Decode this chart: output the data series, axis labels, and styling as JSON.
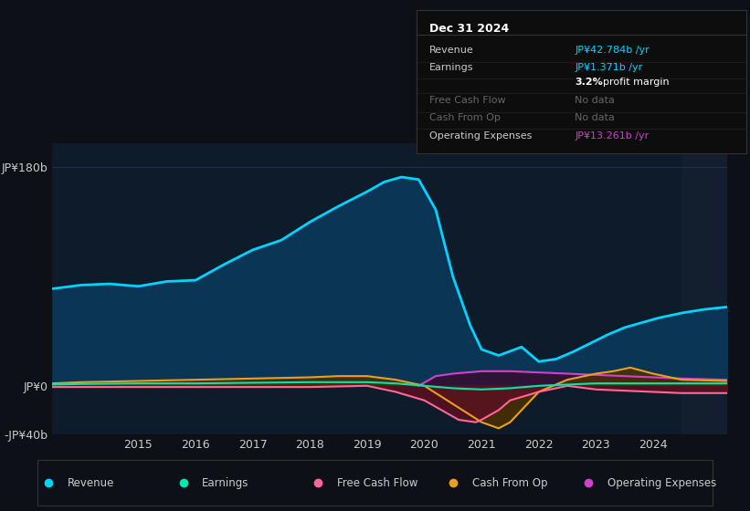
{
  "bg_color": "#0d1117",
  "plot_bg_color": "#0d1b2a",
  "grid_color": "#1e3050",
  "text_color": "#cccccc",
  "title_color": "#ffffff",
  "info_box": {
    "title": "Dec 31 2024",
    "rows": [
      {
        "label": "Revenue",
        "value": "JP¥42.784b /yr",
        "value_color": "#00d4ff",
        "dimmed": false
      },
      {
        "label": "Earnings",
        "value": "JP¥1.371b /yr",
        "value_color": "#00d4ff",
        "dimmed": false
      },
      {
        "label": "",
        "value": "3.2% profit margin",
        "value_color": "#ffffff",
        "dimmed": false
      },
      {
        "label": "Free Cash Flow",
        "value": "No data",
        "value_color": "#666666",
        "dimmed": true
      },
      {
        "label": "Cash From Op",
        "value": "No data",
        "value_color": "#666666",
        "dimmed": true
      },
      {
        "label": "Operating Expenses",
        "value": "JP¥13.261b /yr",
        "value_color": "#cc44cc",
        "dimmed": false
      }
    ]
  },
  "ylim": [
    -40,
    200
  ],
  "yticks": [
    -40,
    0,
    180
  ],
  "ytick_labels": [
    "-JP¥40b",
    "JP¥0",
    "JP¥180b"
  ],
  "xmin": 2013.5,
  "xmax": 2025.3,
  "xticks": [
    2015,
    2016,
    2017,
    2018,
    2019,
    2020,
    2021,
    2022,
    2023,
    2024
  ],
  "shaded_right_x": 2024.5,
  "revenue": {
    "x": [
      2013.5,
      2014.0,
      2014.5,
      2015.0,
      2015.5,
      2016.0,
      2016.5,
      2017.0,
      2017.5,
      2018.0,
      2018.5,
      2019.0,
      2019.3,
      2019.6,
      2019.9,
      2020.2,
      2020.5,
      2020.8,
      2021.0,
      2021.3,
      2021.7,
      2022.0,
      2022.3,
      2022.6,
      2022.9,
      2023.2,
      2023.5,
      2023.8,
      2024.1,
      2024.5,
      2024.9,
      2025.3
    ],
    "y": [
      80,
      83,
      84,
      82,
      86,
      87,
      100,
      112,
      120,
      135,
      148,
      160,
      168,
      172,
      170,
      145,
      90,
      50,
      30,
      25,
      32,
      20,
      22,
      28,
      35,
      42,
      48,
      52,
      56,
      60,
      63,
      65
    ],
    "color": "#00d4ff",
    "fill_color": "#0a3a5c",
    "lw": 2.0
  },
  "earnings": {
    "x": [
      2013.5,
      2014.0,
      2015.0,
      2016.0,
      2017.0,
      2018.0,
      2019.0,
      2019.5,
      2020.0,
      2020.5,
      2021.0,
      2021.5,
      2022.0,
      2022.5,
      2023.0,
      2023.5,
      2024.0,
      2024.5,
      2025.3
    ],
    "y": [
      1,
      1.5,
      2,
      2,
      2.5,
      3,
      3,
      2,
      0,
      -2,
      -3,
      -2,
      0,
      1,
      2,
      2,
      2,
      2,
      2
    ],
    "color": "#00e8b0",
    "lw": 1.5
  },
  "free_cash_flow": {
    "x": [
      2013.5,
      2014.0,
      2015.0,
      2016.0,
      2017.0,
      2018.0,
      2019.0,
      2019.5,
      2020.0,
      2020.3,
      2020.6,
      2020.9,
      2021.0,
      2021.3,
      2021.5,
      2022.0,
      2022.5,
      2023.0,
      2023.5,
      2024.0,
      2024.5,
      2025.3
    ],
    "y": [
      -1,
      -1,
      -1,
      -1,
      -1,
      -1,
      0,
      -5,
      -12,
      -20,
      -28,
      -30,
      -28,
      -20,
      -12,
      -5,
      0,
      -3,
      -4,
      -5,
      -6,
      -6
    ],
    "color": "#ff6699",
    "fill_color": "#5a1020",
    "lw": 1.5
  },
  "cash_from_op": {
    "x": [
      2013.5,
      2014.0,
      2015.0,
      2016.0,
      2017.0,
      2018.0,
      2018.5,
      2019.0,
      2019.5,
      2020.0,
      2020.5,
      2021.0,
      2021.3,
      2021.5,
      2022.0,
      2022.5,
      2023.0,
      2023.3,
      2023.6,
      2024.0,
      2024.5,
      2025.3
    ],
    "y": [
      2,
      3,
      4,
      5,
      6,
      7,
      8,
      8,
      5,
      0,
      -15,
      -30,
      -35,
      -30,
      -5,
      5,
      10,
      12,
      15,
      10,
      5,
      4
    ],
    "color": "#e8a020",
    "fill_color": "#4a3000",
    "lw": 1.5
  },
  "op_expenses": {
    "x": [
      2019.9,
      2020.2,
      2020.5,
      2021.0,
      2021.5,
      2022.0,
      2022.5,
      2023.0,
      2023.5,
      2024.0,
      2024.5,
      2025.3
    ],
    "y": [
      0,
      8,
      10,
      12,
      12,
      11,
      10,
      9,
      8,
      7,
      6,
      5
    ],
    "color": "#cc44cc",
    "fill_color": "#331033",
    "lw": 1.5
  },
  "legend": [
    {
      "label": "Revenue",
      "color": "#00d4ff"
    },
    {
      "label": "Earnings",
      "color": "#00e8b0"
    },
    {
      "label": "Free Cash Flow",
      "color": "#ff6699"
    },
    {
      "label": "Cash From Op",
      "color": "#e8a020"
    },
    {
      "label": "Operating Expenses",
      "color": "#cc44cc"
    }
  ]
}
